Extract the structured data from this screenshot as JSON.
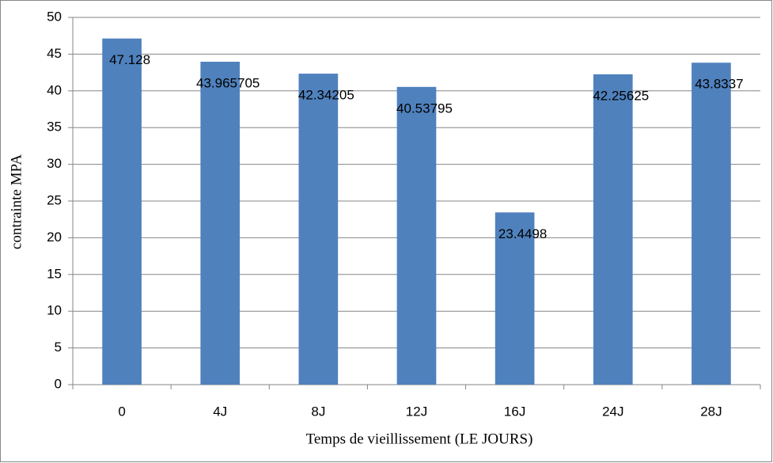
{
  "chart_data": {
    "type": "bar",
    "categories": [
      "0",
      "4J",
      "8J",
      "12J",
      "16J",
      "24J",
      "28J"
    ],
    "values": [
      47.128,
      43.965705,
      42.34205,
      40.53795,
      23.4498,
      42.25625,
      43.8337
    ],
    "color": "#4f81bd",
    "ylim": [
      0,
      50
    ],
    "yticks": [
      0,
      5,
      10,
      15,
      20,
      25,
      30,
      35,
      40,
      45,
      50
    ],
    "grid": true,
    "xlabel": "Temps de vieillissement (LE JOURS)",
    "ylabel": "contrainte MPA"
  }
}
